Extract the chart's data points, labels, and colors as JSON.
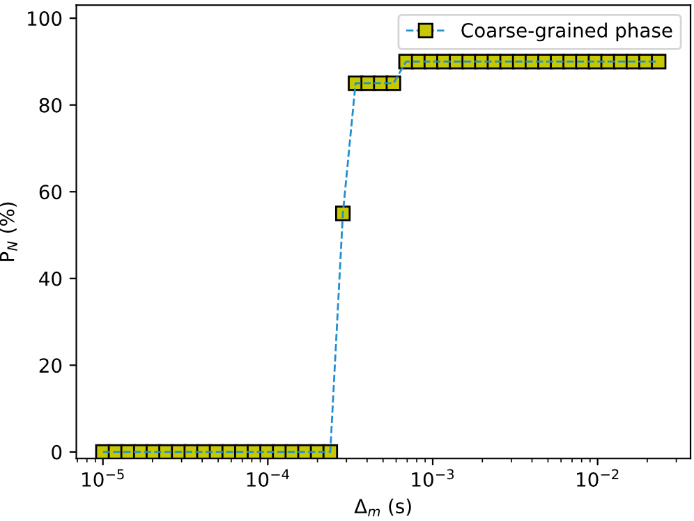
{
  "chart_data": {
    "type": "line",
    "xlabel": "Δ$_{m}$ (s)",
    "ylabel": "P$_{N}$ (%)",
    "log": "x",
    "x": [
      1e-05,
      1.193e-05,
      1.422e-05,
      1.697e-05,
      2.024e-05,
      2.415e-05,
      2.881e-05,
      3.437e-05,
      4.1e-05,
      4.891e-05,
      5.834e-05,
      6.96e-05,
      8.3e-05,
      9.9e-05,
      0.0001181,
      0.0001409,
      0.0001681,
      0.0002005,
      0.0002392,
      0.0002853,
      0.0003404,
      0.0004061,
      0.0004844,
      0.0005778,
      0.0006893,
      0.0008223,
      0.000981,
      0.00117,
      0.001396,
      0.001665,
      0.001986,
      0.002369,
      0.002826,
      0.003371,
      0.004022,
      0.004797,
      0.00572,
      0.00682,
      0.00814,
      0.00971,
      0.01158,
      0.01382,
      0.01648,
      0.01966,
      0.02345
    ],
    "series": [
      {
        "color": "#1f8fd0",
        "marker": "none",
        "values": [
          0,
          0,
          0,
          0,
          0,
          0,
          0,
          0,
          0,
          0,
          0,
          0,
          0,
          0,
          0,
          0,
          0,
          0,
          0,
          55,
          85,
          85,
          85,
          85,
          90,
          90,
          90,
          90,
          90,
          90,
          90,
          90,
          90,
          90,
          90,
          90,
          90,
          90,
          90,
          90,
          90,
          90,
          90,
          90,
          90
        ]
      },
      {
        "type": "scatter",
        "name": "Coarse-grained phase",
        "color": "#c8c800",
        "values": [
          0,
          0,
          0,
          0,
          0,
          0,
          0,
          0,
          0,
          0,
          0,
          0,
          0,
          0,
          0,
          0,
          0,
          0,
          0,
          55,
          85,
          85,
          85,
          85,
          90,
          90,
          90,
          90,
          90,
          90,
          90,
          90,
          90,
          90,
          90,
          90,
          90,
          90,
          90,
          90,
          90,
          90,
          90,
          90,
          90
        ]
      }
    ],
    "xlim": [
      6.9e-06,
      0.0366
    ],
    "xticks": [
      {
        "value": 1e-05,
        "label": "10$^{−5}$"
      },
      {
        "value": 0.0001,
        "label": "10$^{−4}$"
      },
      {
        "value": 0.001,
        "label": "10$^{−3}$"
      },
      {
        "value": 0.01,
        "label": "10$^{−2}$"
      }
    ],
    "ylim": [
      -1.5,
      103
    ],
    "yticks": [
      0,
      20,
      40,
      60,
      80,
      100
    ],
    "marker": "square",
    "line_style": "dashed",
    "legend": "top right",
    "grid": false
  }
}
